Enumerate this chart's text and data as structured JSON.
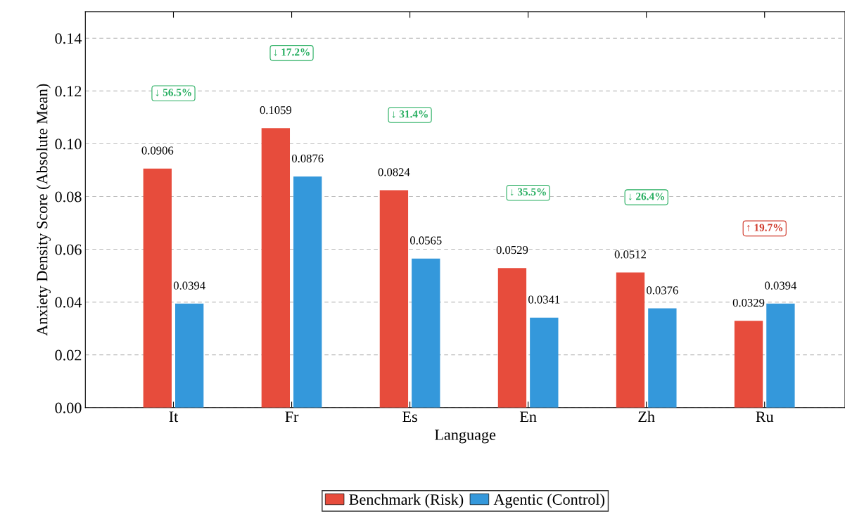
{
  "chart_data": {
    "type": "bar",
    "xlabel": "Language",
    "ylabel": "Anxiety Density Score (Absolute Mean)",
    "categories": [
      "It",
      "Fr",
      "Es",
      "En",
      "Zh",
      "Ru"
    ],
    "series": [
      {
        "name": "Benchmark (Risk)",
        "color": "#e74c3c",
        "values": [
          0.0906,
          0.1059,
          0.0824,
          0.0529,
          0.0512,
          0.0329
        ]
      },
      {
        "name": "Agentic (Control)",
        "color": "#3498db",
        "values": [
          0.0394,
          0.0876,
          0.0565,
          0.0341,
          0.0376,
          0.0394
        ]
      }
    ],
    "ylim": [
      0,
      0.15
    ],
    "yticks": [
      {
        "value": 0,
        "label": "0.00"
      },
      {
        "value": 0.02,
        "label": "0.02"
      },
      {
        "value": 0.04,
        "label": "0.04"
      },
      {
        "value": 0.06,
        "label": "0.06"
      },
      {
        "value": 0.08,
        "label": "0.08"
      },
      {
        "value": 0.1,
        "label": "0.10"
      },
      {
        "value": 0.12,
        "label": "0.12"
      },
      {
        "value": 0.14,
        "label": "0.14"
      }
    ],
    "grid": "y",
    "legend": "bottom",
    "data_labels": true,
    "annotations": [
      "↓ 56.5%",
      "↓ 17.2%",
      "↓ 31.4%",
      "↓ 35.5%",
      "↓ 26.4%",
      "↑ 19.7%"
    ]
  }
}
